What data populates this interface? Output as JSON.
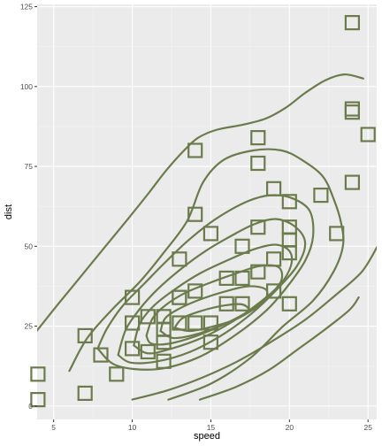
{
  "chart_data": {
    "type": "scatter",
    "title": "",
    "xlabel": "speed",
    "ylabel": "dist",
    "xlim": [
      3.95,
      25.55
    ],
    "ylim": [
      -4.19,
      125.7
    ],
    "x_ticks": [
      5,
      10,
      15,
      20,
      25
    ],
    "y_ticks": [
      0,
      25,
      50,
      75,
      100,
      125
    ],
    "grid": true,
    "legend": "none",
    "colors": {
      "panel": "#EBEBEB",
      "grid_major": "#FFFFFF",
      "grid_minor": "#F5F5F5",
      "series": "#6B7B4C"
    },
    "points": [
      {
        "x": 4,
        "y": 2
      },
      {
        "x": 4,
        "y": 10
      },
      {
        "x": 7,
        "y": 4
      },
      {
        "x": 7,
        "y": 22
      },
      {
        "x": 8,
        "y": 16
      },
      {
        "x": 9,
        "y": 10
      },
      {
        "x": 10,
        "y": 18
      },
      {
        "x": 10,
        "y": 26
      },
      {
        "x": 10,
        "y": 34
      },
      {
        "x": 11,
        "y": 17
      },
      {
        "x": 11,
        "y": 28
      },
      {
        "x": 12,
        "y": 14
      },
      {
        "x": 12,
        "y": 20
      },
      {
        "x": 12,
        "y": 24
      },
      {
        "x": 12,
        "y": 28
      },
      {
        "x": 13,
        "y": 26
      },
      {
        "x": 13,
        "y": 34
      },
      {
        "x": 13,
        "y": 34
      },
      {
        "x": 13,
        "y": 46
      },
      {
        "x": 14,
        "y": 26
      },
      {
        "x": 14,
        "y": 36
      },
      {
        "x": 14,
        "y": 60
      },
      {
        "x": 14,
        "y": 80
      },
      {
        "x": 15,
        "y": 20
      },
      {
        "x": 15,
        "y": 26
      },
      {
        "x": 15,
        "y": 54
      },
      {
        "x": 16,
        "y": 32
      },
      {
        "x": 16,
        "y": 40
      },
      {
        "x": 17,
        "y": 32
      },
      {
        "x": 17,
        "y": 40
      },
      {
        "x": 17,
        "y": 50
      },
      {
        "x": 18,
        "y": 42
      },
      {
        "x": 18,
        "y": 56
      },
      {
        "x": 18,
        "y": 76
      },
      {
        "x": 18,
        "y": 84
      },
      {
        "x": 19,
        "y": 36
      },
      {
        "x": 19,
        "y": 46
      },
      {
        "x": 19,
        "y": 68
      },
      {
        "x": 20,
        "y": 32
      },
      {
        "x": 20,
        "y": 48
      },
      {
        "x": 20,
        "y": 52
      },
      {
        "x": 20,
        "y": 56
      },
      {
        "x": 20,
        "y": 64
      },
      {
        "x": 22,
        "y": 66
      },
      {
        "x": 23,
        "y": 54
      },
      {
        "x": 24,
        "y": 70
      },
      {
        "x": 24,
        "y": 92
      },
      {
        "x": 24,
        "y": 93
      },
      {
        "x": 24,
        "y": 120
      },
      {
        "x": 25,
        "y": 85
      }
    ],
    "density_contours": [
      [
        [
          3.92,
          23.5
        ],
        [
          5.3,
          32
        ],
        [
          6.8,
          41
        ],
        [
          8.3,
          50
        ],
        [
          9.8,
          59
        ],
        [
          11.1,
          67
        ],
        [
          12.2,
          74
        ],
        [
          13.3,
          80
        ],
        [
          14.2,
          84
        ],
        [
          15.4,
          86.5
        ],
        [
          17,
          88
        ],
        [
          18.5,
          90
        ],
        [
          19.8,
          93.5
        ],
        [
          21,
          98
        ],
        [
          22.3,
          102
        ],
        [
          23.5,
          103.8
        ],
        [
          24.7,
          102.5
        ]
      ],
      [
        [
          10,
          2
        ],
        [
          12.3,
          5
        ],
        [
          14.5,
          9
        ],
        [
          16.7,
          14
        ],
        [
          18.8,
          20
        ],
        [
          21,
          27
        ],
        [
          23,
          35
        ],
        [
          24.6,
          42
        ],
        [
          25.6,
          50
        ]
      ],
      [
        [
          6,
          11
        ],
        [
          7.1,
          21
        ],
        [
          8.6,
          29.6
        ],
        [
          10.5,
          39
        ],
        [
          12,
          48
        ],
        [
          13.5,
          58
        ],
        [
          14.5,
          70
        ],
        [
          15.8,
          77
        ],
        [
          17.7,
          80
        ],
        [
          19.5,
          80
        ],
        [
          20.8,
          77
        ],
        [
          22.1,
          72
        ],
        [
          22.8,
          65
        ],
        [
          23.3,
          57
        ],
        [
          23.4,
          50
        ],
        [
          22.8,
          42
        ],
        [
          21.5,
          33
        ],
        [
          19.6,
          25
        ],
        [
          17.5,
          15
        ],
        [
          15,
          7
        ],
        [
          12.3,
          2
        ]
      ],
      [
        [
          14.3,
          2
        ],
        [
          16.6,
          6
        ],
        [
          18.7,
          11.3
        ],
        [
          20.6,
          18
        ],
        [
          22,
          23
        ],
        [
          23.8,
          30
        ],
        [
          24.4,
          34
        ]
      ],
      [
        [
          7.8,
          18
        ],
        [
          8.4,
          24.3
        ],
        [
          9.4,
          31.4
        ],
        [
          10.8,
          38.5
        ],
        [
          12.1,
          45
        ],
        [
          13.6,
          52
        ],
        [
          15.3,
          58.5
        ],
        [
          17.3,
          64
        ],
        [
          18.8,
          66
        ],
        [
          20.2,
          65
        ],
        [
          21.3,
          61
        ],
        [
          21.5,
          53
        ],
        [
          21,
          45.5
        ],
        [
          19.8,
          37
        ],
        [
          18.5,
          29.8
        ],
        [
          16.5,
          22
        ],
        [
          14.1,
          15
        ],
        [
          11.5,
          11.5
        ],
        [
          9,
          12.7
        ],
        [
          7.8,
          18
        ]
      ],
      [
        [
          9.1,
          16
        ],
        [
          9.6,
          24
        ],
        [
          10.5,
          30.5
        ],
        [
          11.6,
          36.5
        ],
        [
          13,
          42.5
        ],
        [
          14.5,
          48
        ],
        [
          16.2,
          53
        ],
        [
          17.8,
          57
        ],
        [
          19.2,
          58.5
        ],
        [
          20.4,
          56
        ],
        [
          21,
          51
        ],
        [
          20.5,
          44
        ],
        [
          19.2,
          36.5
        ],
        [
          17.6,
          29
        ],
        [
          15.8,
          22.5
        ],
        [
          13.7,
          17
        ],
        [
          11.6,
          14
        ],
        [
          9.9,
          13.6
        ],
        [
          9.1,
          16
        ]
      ],
      [
        [
          10.1,
          19
        ],
        [
          10.5,
          26
        ],
        [
          11.4,
          31.5
        ],
        [
          12.7,
          36.5
        ],
        [
          14.3,
          41.5
        ],
        [
          16,
          45.5
        ],
        [
          17.7,
          49
        ],
        [
          19.1,
          50.5
        ],
        [
          20,
          48.5
        ],
        [
          20.1,
          44
        ],
        [
          19.4,
          38
        ],
        [
          18,
          32
        ],
        [
          16.4,
          26.5
        ],
        [
          14.5,
          21.5
        ],
        [
          12.5,
          18
        ],
        [
          11,
          16.5
        ],
        [
          10.1,
          19
        ]
      ],
      [
        [
          10.9,
          22
        ],
        [
          11.3,
          27.5
        ],
        [
          12.1,
          31.5
        ],
        [
          13.4,
          35.5
        ],
        [
          14.9,
          38.5
        ],
        [
          16.6,
          41.5
        ],
        [
          18.1,
          43.8
        ],
        [
          19.3,
          43.5
        ],
        [
          19.5,
          39.5
        ],
        [
          18.8,
          35
        ],
        [
          17.5,
          30
        ],
        [
          15.8,
          25.5
        ],
        [
          14,
          21.8
        ],
        [
          12.3,
          19.5
        ],
        [
          11.2,
          19.6
        ],
        [
          10.9,
          22
        ]
      ],
      [
        [
          11.8,
          23.5
        ],
        [
          12.1,
          27.5
        ],
        [
          13,
          30.5
        ],
        [
          14.4,
          33.5
        ],
        [
          16,
          36
        ],
        [
          17.4,
          37.5
        ],
        [
          18.5,
          36.5
        ],
        [
          18.4,
          33
        ],
        [
          17.3,
          29
        ],
        [
          15.8,
          25.5
        ],
        [
          14.1,
          22.5
        ],
        [
          12.6,
          21.3
        ],
        [
          11.8,
          23.5
        ]
      ],
      [
        [
          12.7,
          24.5
        ],
        [
          13.2,
          27.5
        ],
        [
          14.4,
          29.8
        ],
        [
          15.9,
          31.5
        ],
        [
          17,
          31.8
        ],
        [
          17.4,
          29.8
        ],
        [
          16.6,
          27.2
        ],
        [
          15.2,
          25
        ],
        [
          13.7,
          23.5
        ],
        [
          12.7,
          24.5
        ]
      ]
    ]
  }
}
